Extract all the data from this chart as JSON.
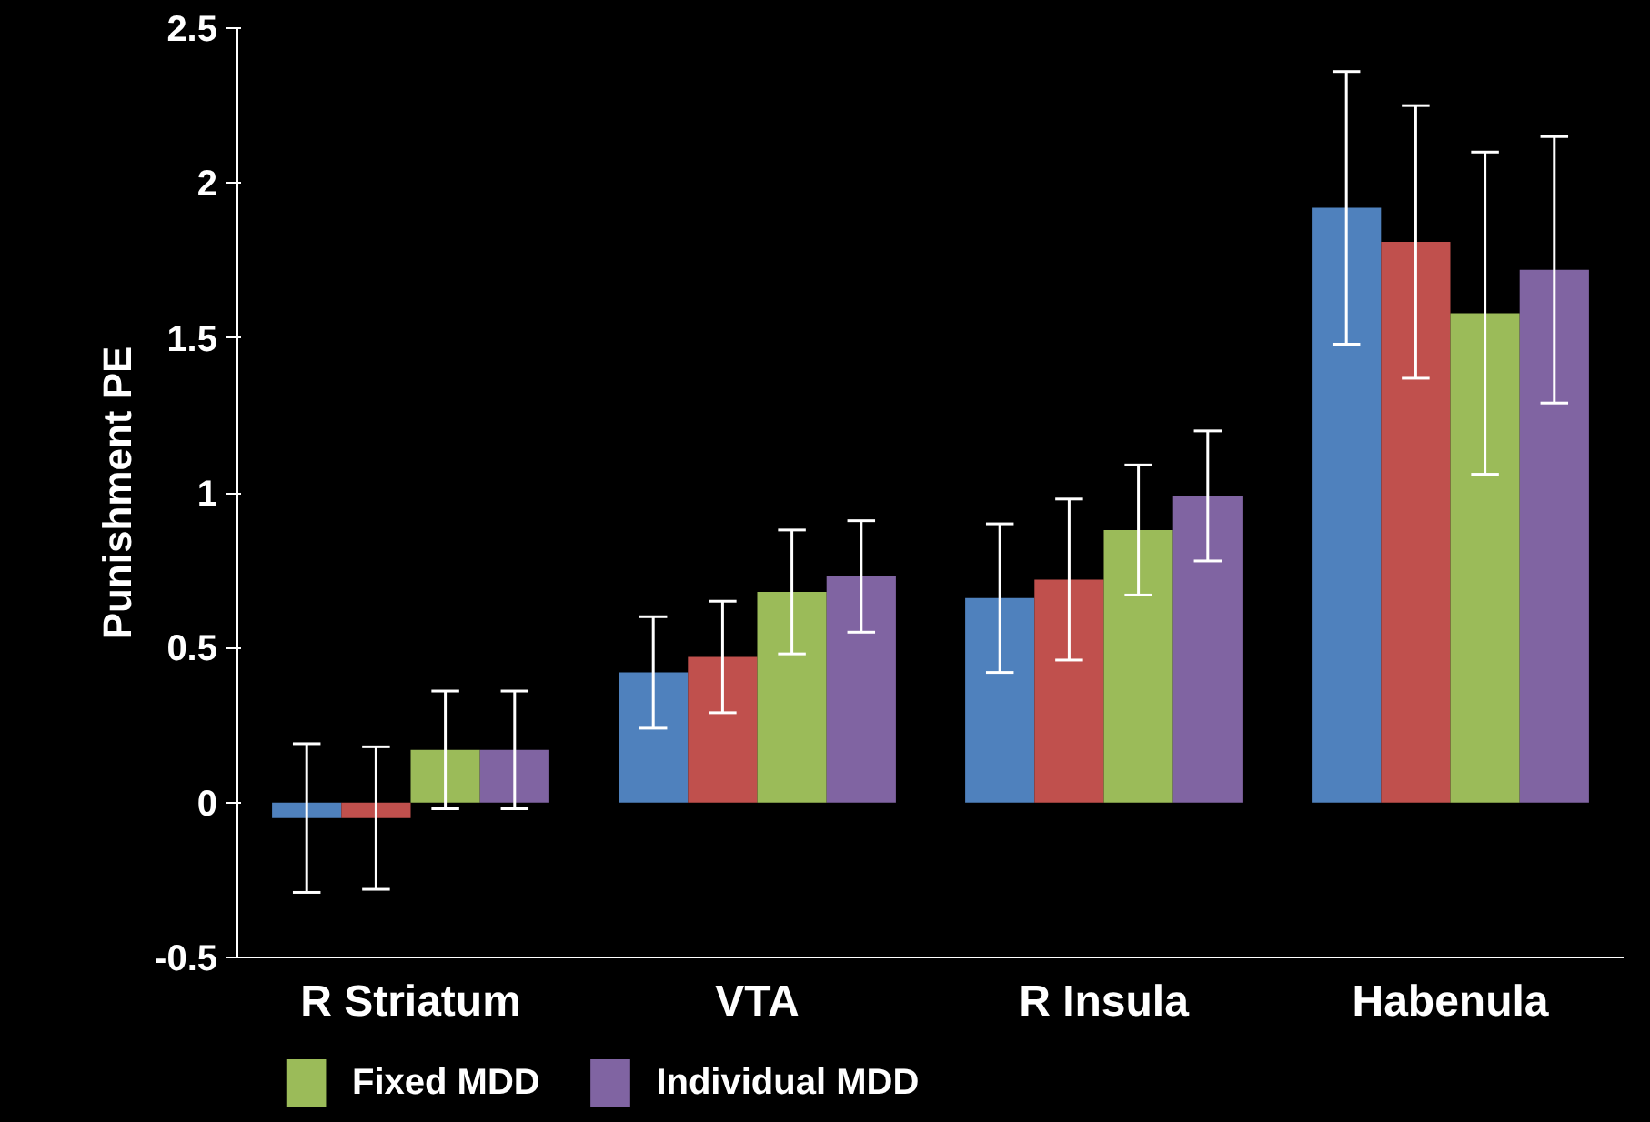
{
  "chart_data": {
    "type": "bar",
    "ylabel": "Punishment PE",
    "categories": [
      "R Striatum",
      "VTA",
      "R Insula",
      "Habenula"
    ],
    "ylim": [
      -0.5,
      2.5
    ],
    "yticks": [
      -0.5,
      0,
      0.5,
      1,
      1.5,
      2,
      2.5
    ],
    "grid": false,
    "legend": "bottom",
    "series": [
      {
        "color": "#4f81bd",
        "values": [
          -0.05,
          0.42,
          0.66,
          1.92
        ],
        "errors": [
          0.24,
          0.18,
          0.24,
          0.44
        ]
      },
      {
        "color": "#c0504d",
        "values": [
          -0.05,
          0.47,
          0.72,
          1.81
        ],
        "errors": [
          0.23,
          0.18,
          0.26,
          0.44
        ]
      },
      {
        "name": "Fixed MDD",
        "color": "#9bbb59",
        "values": [
          0.17,
          0.68,
          0.88,
          1.58
        ],
        "errors": [
          0.19,
          0.2,
          0.21,
          0.52
        ]
      },
      {
        "name": "Individual MDD",
        "color": "#8064a2",
        "values": [
          0.17,
          0.73,
          0.99,
          1.72
        ],
        "errors": [
          0.19,
          0.18,
          0.21,
          0.43
        ]
      }
    ]
  }
}
